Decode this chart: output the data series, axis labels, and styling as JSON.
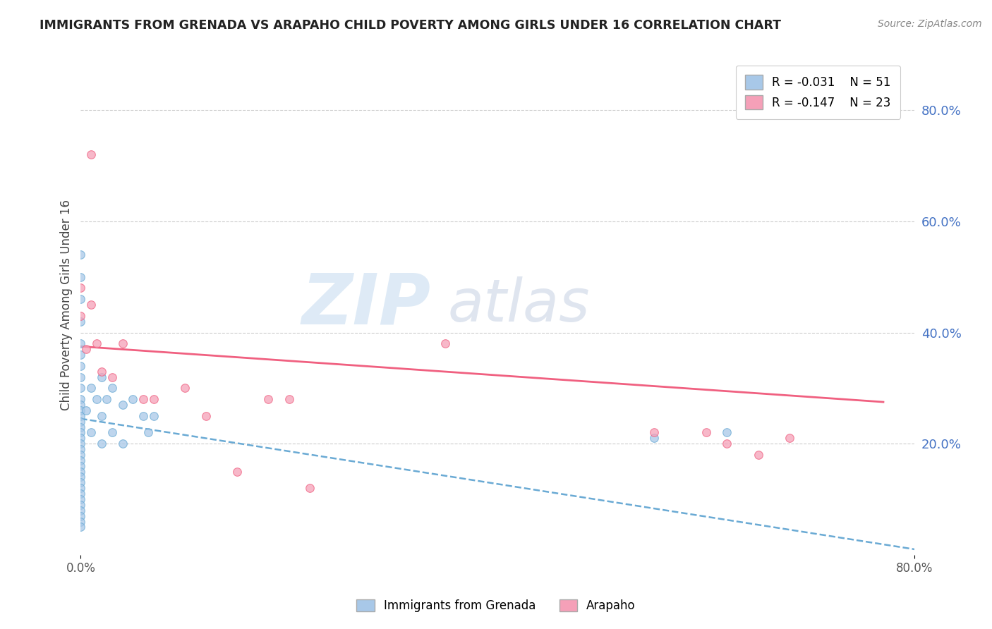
{
  "title": "IMMIGRANTS FROM GRENADA VS ARAPAHO CHILD POVERTY AMONG GIRLS UNDER 16 CORRELATION CHART",
  "source": "Source: ZipAtlas.com",
  "ylabel": "Child Poverty Among Girls Under 16",
  "xlim": [
    0.0,
    0.8
  ],
  "ylim": [
    0.0,
    0.9
  ],
  "legend_r1": "R = -0.031",
  "legend_n1": "N = 51",
  "legend_r2": "R = -0.147",
  "legend_n2": "N = 23",
  "color_grenada": "#a8c8e8",
  "color_arapaho": "#f5a0b8",
  "color_line_grenada": "#6aaad4",
  "color_line_arapaho": "#f06080",
  "grenada_x": [
    0.0,
    0.0,
    0.0,
    0.0,
    0.0,
    0.0,
    0.0,
    0.0,
    0.0,
    0.0,
    0.0,
    0.0,
    0.0,
    0.0,
    0.0,
    0.0,
    0.0,
    0.0,
    0.0,
    0.0,
    0.0,
    0.0,
    0.0,
    0.0,
    0.0,
    0.0,
    0.0,
    0.0,
    0.0,
    0.0,
    0.0,
    0.0,
    0.0,
    0.005,
    0.01,
    0.01,
    0.015,
    0.02,
    0.02,
    0.02,
    0.025,
    0.03,
    0.03,
    0.04,
    0.04,
    0.05,
    0.06,
    0.065,
    0.07,
    0.55,
    0.62
  ],
  "grenada_y": [
    0.54,
    0.5,
    0.46,
    0.42,
    0.38,
    0.36,
    0.34,
    0.32,
    0.3,
    0.28,
    0.27,
    0.26,
    0.25,
    0.24,
    0.23,
    0.22,
    0.21,
    0.2,
    0.19,
    0.18,
    0.17,
    0.16,
    0.15,
    0.14,
    0.13,
    0.12,
    0.11,
    0.1,
    0.09,
    0.08,
    0.07,
    0.06,
    0.05,
    0.26,
    0.3,
    0.22,
    0.28,
    0.32,
    0.25,
    0.2,
    0.28,
    0.3,
    0.22,
    0.27,
    0.2,
    0.28,
    0.25,
    0.22,
    0.25,
    0.21,
    0.22
  ],
  "arapaho_x": [
    0.01,
    0.0,
    0.0,
    0.005,
    0.01,
    0.015,
    0.02,
    0.03,
    0.04,
    0.06,
    0.07,
    0.1,
    0.12,
    0.15,
    0.18,
    0.2,
    0.22,
    0.35,
    0.55,
    0.6,
    0.62,
    0.65,
    0.68
  ],
  "arapaho_y": [
    0.72,
    0.48,
    0.43,
    0.37,
    0.45,
    0.38,
    0.33,
    0.32,
    0.38,
    0.28,
    0.28,
    0.3,
    0.25,
    0.15,
    0.28,
    0.28,
    0.12,
    0.38,
    0.22,
    0.22,
    0.2,
    0.18,
    0.21
  ],
  "line_grenada_x0": 0.0,
  "line_grenada_x1": 0.8,
  "line_grenada_y0": 0.245,
  "line_grenada_y1": 0.01,
  "line_arapaho_x0": 0.0,
  "line_arapaho_x1": 0.77,
  "line_arapaho_y0": 0.375,
  "line_arapaho_y1": 0.275
}
